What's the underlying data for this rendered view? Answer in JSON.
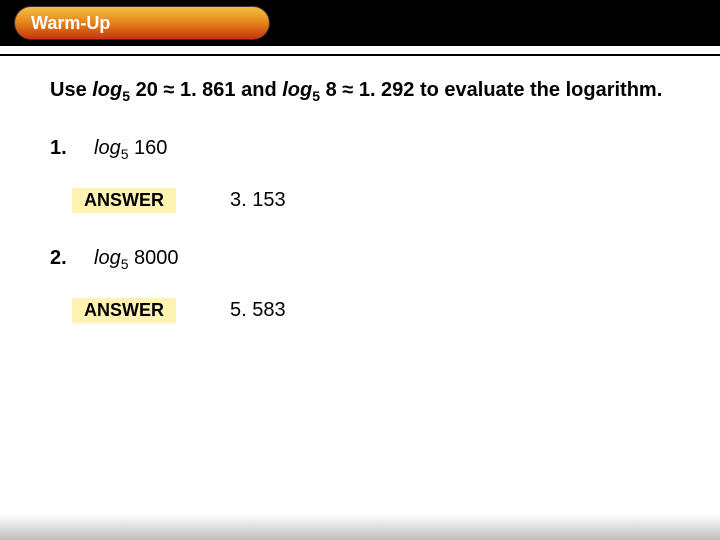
{
  "header": {
    "pill_label": "Warm-Up",
    "pill_gradient_top": "#f4bf44",
    "pill_gradient_mid": "#e68a1d",
    "pill_gradient_bottom": "#c9330f",
    "bar_color": "#000000",
    "text_color": "#ffffff"
  },
  "instruction": {
    "prefix": "Use ",
    "log1_func": "log",
    "log1_base": "5",
    "log1_arg": " 20 ",
    "approx1": "≈",
    "val1": " 1. 861 ",
    "mid": "and ",
    "log2_func": "log",
    "log2_base": "5",
    "log2_arg": " 8 ",
    "approx2": "≈",
    "val2": " 1. 292 ",
    "suffix": "to evaluate the logarithm."
  },
  "problems": [
    {
      "number": "1.",
      "log_func": "log",
      "log_base": "5",
      "log_arg": " 160",
      "answer_label": "ANSWER",
      "answer_value": "3. 153"
    },
    {
      "number": "2.",
      "log_func": "log",
      "log_base": "5",
      "log_arg": " 8000",
      "answer_label": "ANSWER",
      "answer_value": "5. 583"
    }
  ],
  "style": {
    "answer_bg": "#fff3b3",
    "body_font_size": 20,
    "pill_font_size": 18
  }
}
